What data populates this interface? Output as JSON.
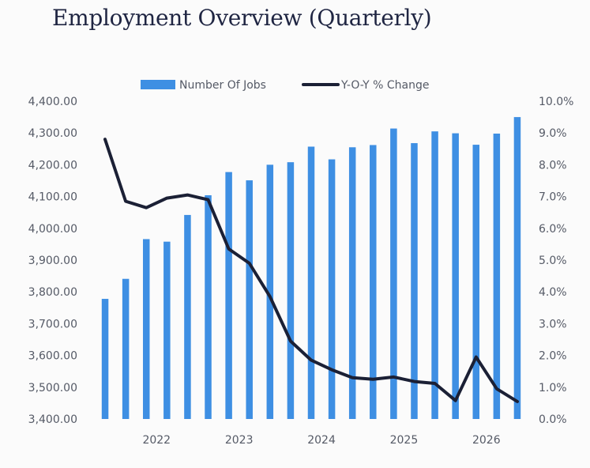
{
  "page": {
    "title": "Employment Overview (Quarterly)"
  },
  "colors": {
    "bars": "#3e8fe3",
    "line": "#1b2035",
    "text": "#555a66",
    "title": "#1f2542"
  },
  "chart_data": {
    "type": "bar",
    "title": "Employment Overview (Quarterly)",
    "legend": {
      "position": "top",
      "items": [
        "Number Of Jobs",
        "Y-O-Y % Change"
      ]
    },
    "x_tick_labels": [
      "2022",
      "2023",
      "2024",
      "2025",
      "2026"
    ],
    "x_tick_after_point": [
      2,
      6,
      10,
      14,
      18
    ],
    "series": [
      {
        "name": "Number Of Jobs",
        "type": "bar",
        "axis": "left",
        "values": [
          3778,
          3841,
          3966,
          3958,
          4042,
          4104,
          4177,
          4151,
          4200,
          4208,
          4257,
          4217,
          4255,
          4262,
          4314,
          4268,
          4305,
          4299,
          4263,
          4298,
          4350
        ]
      },
      {
        "name": "Y-O-Y % Change",
        "type": "line",
        "axis": "right",
        "values": [
          8.8,
          6.85,
          6.65,
          6.95,
          7.05,
          6.9,
          5.35,
          4.9,
          3.85,
          2.45,
          1.85,
          1.55,
          1.3,
          1.25,
          1.32,
          1.18,
          1.12,
          0.58,
          1.95,
          0.95,
          0.55
        ]
      }
    ],
    "y_left": {
      "min": 3400,
      "max": 4400,
      "step": 100,
      "tick_labels": [
        "3,400.00",
        "3,500.00",
        "3,600.00",
        "3,700.00",
        "3,800.00",
        "3,900.00",
        "4,000.00",
        "4,100.00",
        "4,200.00",
        "4,300.00",
        "4,400.00"
      ]
    },
    "y_right": {
      "min": 0,
      "max": 10,
      "step": 1,
      "tick_labels": [
        "0.0%",
        "1.0%",
        "2.0%",
        "3.0%",
        "4.0%",
        "5.0%",
        "6.0%",
        "7.0%",
        "8.0%",
        "9.0%",
        "10.0%"
      ]
    },
    "grid": false
  }
}
